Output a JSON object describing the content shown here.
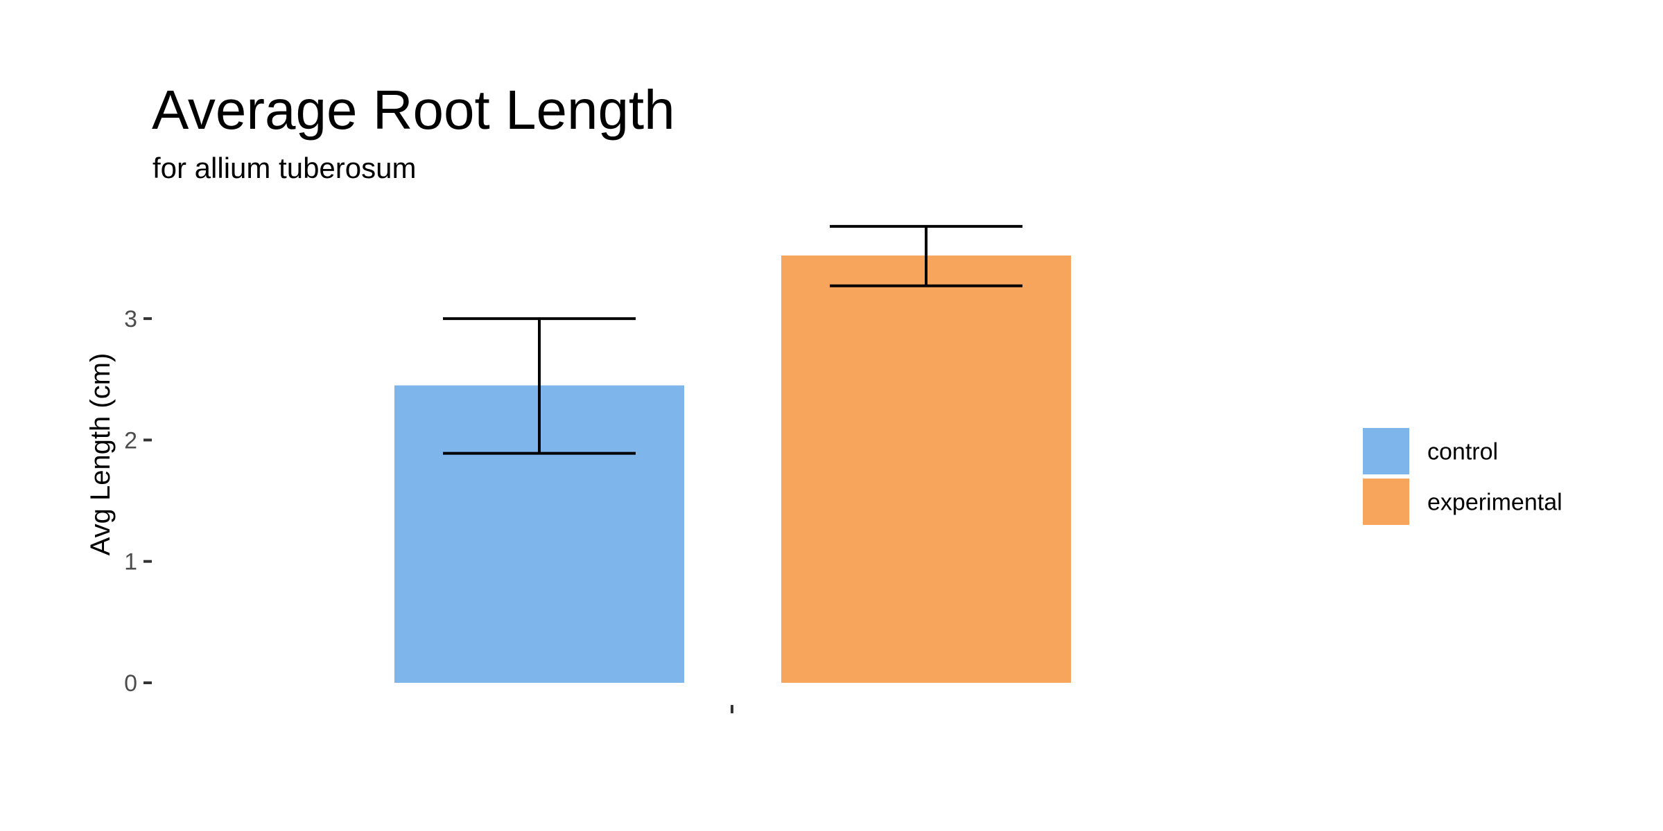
{
  "chart_data": {
    "type": "bar",
    "title": "Average Root Length",
    "subtitle": "for  allium tuberosum",
    "xlabel": "",
    "ylabel": "Avg Length (cm)",
    "categories": [
      ""
    ],
    "ylim": [
      0,
      3.95
    ],
    "yticks": [
      0,
      1,
      2,
      3
    ],
    "grid": false,
    "legend_position": "right",
    "series": [
      {
        "name": "control",
        "color": "#7EB5EB",
        "values": [
          2.45
        ],
        "error_low": [
          1.89
        ],
        "error_high": [
          3.0
        ]
      },
      {
        "name": "experimental",
        "color": "#F7A55C",
        "values": [
          3.52
        ],
        "error_low": [
          3.27
        ],
        "error_high": [
          3.76
        ]
      }
    ]
  }
}
